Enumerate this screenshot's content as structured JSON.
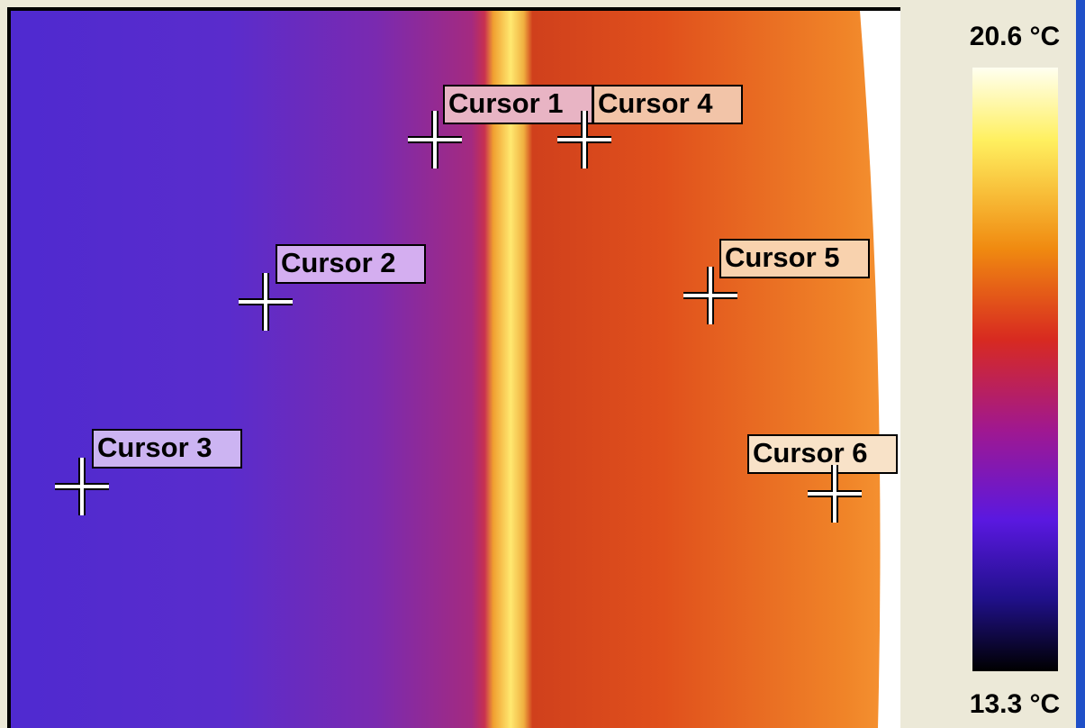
{
  "cursors": [
    {
      "label": "Cursor 1"
    },
    {
      "label": "Cursor 2"
    },
    {
      "label": "Cursor 3"
    },
    {
      "label": "Cursor 4"
    },
    {
      "label": "Cursor 5"
    },
    {
      "label": "Cursor 6"
    }
  ],
  "scale": {
    "max": "20.6 °C",
    "min": "13.3 °C"
  }
}
